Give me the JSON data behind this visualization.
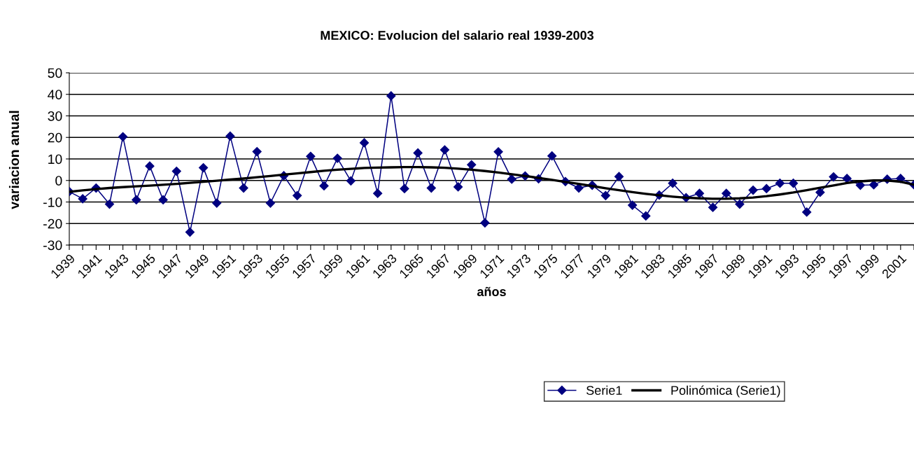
{
  "chart_data": {
    "type": "line",
    "title": "MEXICO: Evolucion del salario real 1939-2003",
    "xlabel": "años",
    "ylabel": "variacion anual",
    "categories": [
      "1939",
      null,
      "1941",
      null,
      "1943",
      null,
      "1945",
      null,
      "1947",
      null,
      "1949",
      null,
      "1951",
      null,
      "1953",
      null,
      "1955",
      null,
      "1957",
      null,
      "1959",
      null,
      "1961",
      null,
      "1963",
      null,
      "1965",
      null,
      "1967",
      null,
      "1969",
      null,
      "1971",
      null,
      "1973",
      null,
      "1975",
      null,
      "1977",
      null,
      "1979",
      null,
      "1981",
      null,
      "1983",
      null,
      "1985",
      null,
      "1987",
      null,
      "1989",
      null,
      "1991",
      null,
      "1993",
      null,
      "1995",
      null,
      "1997",
      null,
      "1999",
      null,
      "2001",
      null
    ],
    "series": [
      {
        "name": "Serie1",
        "color": "#000080",
        "marker": "diamond",
        "values": [
          -5.2,
          -8.5,
          -3.5,
          -11,
          20.3,
          -9,
          6.7,
          -9,
          4.3,
          -24,
          5.9,
          -10.5,
          20.6,
          -3.5,
          13.4,
          -10.5,
          2.2,
          -7,
          11.2,
          -2.5,
          10.3,
          -0.2,
          17.5,
          -6,
          39.3,
          -3.8,
          12.8,
          -3.5,
          14.2,
          -3,
          7.3,
          -19.7,
          13.3,
          0.6,
          2.1,
          0.8,
          11.4,
          -0.5,
          -3.5,
          -2.2,
          -7,
          1.8,
          -11.5,
          -16.5,
          -6.8,
          -1.3,
          -8,
          -6,
          -12.5,
          -6,
          -11,
          -4.5,
          -3.8,
          -1.3,
          -1.3,
          -14.7,
          -5.5,
          1.7,
          0.9,
          -2.2,
          -2,
          0.6,
          0.9,
          -2
        ]
      },
      {
        "name": "Polinómica (Serie1)",
        "color": "#000000",
        "marker": "none",
        "values": [
          -5.3,
          -4.6,
          -4,
          -3.5,
          -3.1,
          -2.7,
          -2.4,
          -2,
          -1.6,
          -1.1,
          -0.6,
          -0.1,
          0.4,
          0.9,
          1.5,
          2.1,
          2.7,
          3.3,
          3.9,
          4.5,
          5,
          5.4,
          5.8,
          6,
          6.1,
          6.2,
          6.2,
          6.1,
          5.9,
          5.5,
          5,
          4.4,
          3.7,
          2.9,
          2.1,
          1.2,
          0.3,
          -0.7,
          -1.6,
          -2.6,
          -3.6,
          -4.5,
          -5.4,
          -6.2,
          -6.9,
          -7.5,
          -8,
          -8.3,
          -8.5,
          -8.5,
          -8.3,
          -7.9,
          -7.3,
          -6.5,
          -5.6,
          -4.5,
          -3.4,
          -2.3,
          -1.2,
          -0.4,
          0,
          0,
          -0.6,
          -2
        ]
      }
    ],
    "ylim": [
      -30,
      50
    ],
    "yticks": [
      -30,
      -20,
      -10,
      0,
      10,
      20,
      30,
      40,
      50
    ],
    "grid": "y",
    "legend": "bottom right"
  }
}
